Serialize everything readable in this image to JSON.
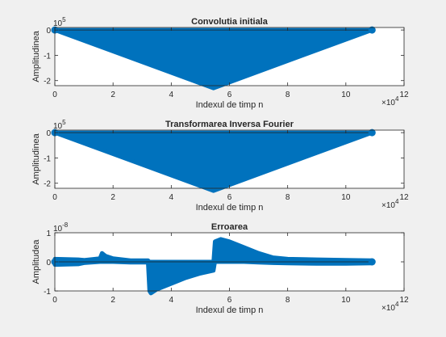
{
  "chart_data": [
    {
      "type": "scatter",
      "title": "Convolutia initiala",
      "xlabel": "Indexul de timp n",
      "ylabel": "Amplitudinea",
      "x_exponent": "10",
      "x_exponent_power": "4",
      "y_exponent": "10",
      "y_exponent_power": "5",
      "xlim": [
        0,
        12
      ],
      "ylim": [
        -2.2,
        0.1
      ],
      "x_ticks": [
        0,
        2,
        4,
        6,
        8,
        10,
        12
      ],
      "y_ticks": [
        0,
        -1,
        -2
      ],
      "x_tick_labels": [
        "0",
        "2",
        "4",
        "6",
        "8",
        "10",
        "12"
      ],
      "y_tick_labels": [
        "0",
        "-1",
        "-2"
      ],
      "grid": false,
      "series": [
        {
          "color": "#0072bd",
          "fill": "band",
          "x": [
            0,
            5.45,
            10.9
          ],
          "upper": [
            0,
            0,
            0
          ],
          "lower": [
            0,
            -2.3,
            0
          ]
        }
      ]
    },
    {
      "type": "scatter",
      "title": "Transformarea Inversa Fourier",
      "xlabel": "Indexul de timp n",
      "ylabel": "Amplitudinea",
      "x_exponent": "10",
      "x_exponent_power": "4",
      "y_exponent": "10",
      "y_exponent_power": "5",
      "xlim": [
        0,
        12
      ],
      "ylim": [
        -2.2,
        0.1
      ],
      "x_ticks": [
        0,
        2,
        4,
        6,
        8,
        10,
        12
      ],
      "y_ticks": [
        0,
        -1,
        -2
      ],
      "x_tick_labels": [
        "0",
        "2",
        "4",
        "6",
        "8",
        "10",
        "12"
      ],
      "y_tick_labels": [
        "0",
        "-1",
        "-2"
      ],
      "grid": false,
      "series": [
        {
          "color": "#0072bd",
          "fill": "band",
          "x": [
            0,
            5.45,
            10.9
          ],
          "upper": [
            0,
            0,
            0
          ],
          "lower": [
            0,
            -2.3,
            0
          ]
        }
      ]
    },
    {
      "type": "scatter",
      "title": "Erroarea",
      "xlabel": "Indexul de timp n",
      "ylabel": "Amplitudea",
      "x_exponent": "10",
      "x_exponent_power": "4",
      "y_exponent": "10",
      "y_exponent_power": "-8",
      "xlim": [
        0,
        12
      ],
      "ylim": [
        -1,
        1
      ],
      "x_ticks": [
        0,
        2,
        4,
        6,
        8,
        10,
        12
      ],
      "y_ticks": [
        1,
        0,
        -1
      ],
      "x_tick_labels": [
        "0",
        "2",
        "4",
        "6",
        "8",
        "10",
        "12"
      ],
      "y_tick_labels": [
        "1",
        "0",
        "-1"
      ],
      "grid": false,
      "series": [
        {
          "color": "#0072bd",
          "fill": "band",
          "x": [
            0,
            0.8,
            1.0,
            1.55,
            1.62,
            1.75,
            2.0,
            2.6,
            3.0,
            3.2,
            3.25,
            3.3,
            3.5,
            4.0,
            4.5,
            5.0,
            5.45,
            5.5,
            5.7,
            6.0,
            6.5,
            7.0,
            7.5,
            8.0,
            9.0,
            10.0,
            10.9
          ],
          "upper": [
            0.1,
            0.08,
            0.06,
            0.12,
            0.3,
            0.2,
            0.12,
            0.05,
            0.05,
            0.05,
            0.0,
            0.0,
            0.0,
            0.0,
            0.0,
            0.0,
            0.0,
            0.7,
            0.78,
            0.7,
            0.5,
            0.3,
            0.15,
            0.1,
            0.08,
            0.06,
            0.05
          ],
          "lower": [
            -0.1,
            -0.08,
            -0.04,
            0.0,
            0.0,
            0.0,
            0.0,
            -0.02,
            -0.02,
            -0.02,
            -1.0,
            -1.08,
            -0.95,
            -0.75,
            -0.55,
            -0.4,
            -0.3,
            0.0,
            0.0,
            0.0,
            0.0,
            -0.02,
            -0.04,
            -0.05,
            -0.06,
            -0.06,
            -0.05
          ]
        }
      ]
    }
  ]
}
